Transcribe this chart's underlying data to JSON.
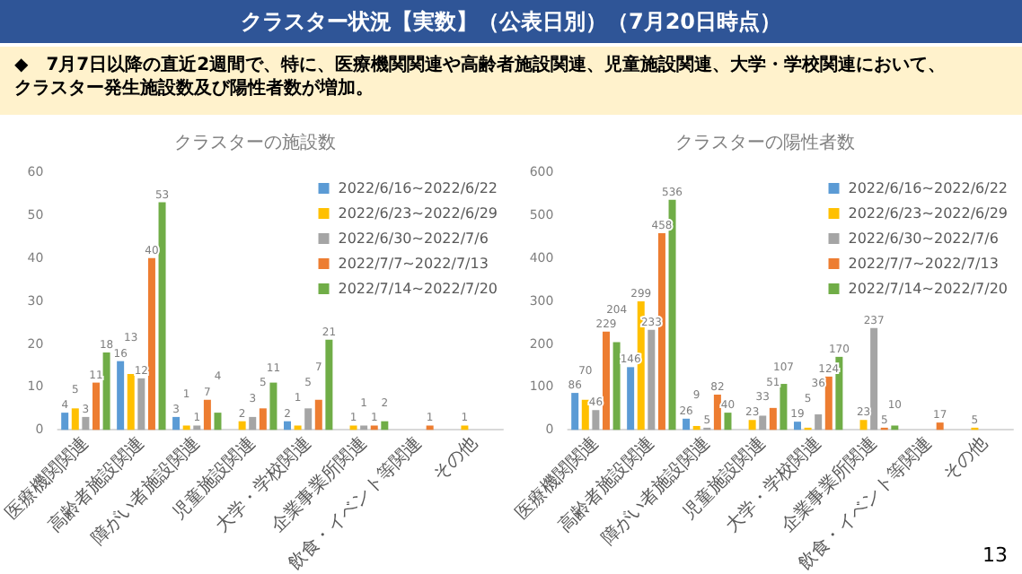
{
  "chart_data": [
    {
      "type": "bar",
      "title": "クラスターの施設数",
      "annotations": [
        "クラスター状況【実数】（公表日別）（7月20日時点）",
        "◆　7月7日以降の直近2週間で、特に、医療機関関連や高齢者施設関連、児童施設関連、大学・学校関連において、",
        "クラスター発生施設数及び陽性者数が増加。"
      ],
      "categories": [
        "医療機関関連",
        "高齢者施設関連",
        "障がい者施設関連",
        "児童施設関連",
        "大学・学校関連",
        "企業事業所関連",
        "飲食・イベント等関連",
        "その他"
      ],
      "series": [
        {
          "name": "2022/6/16~2022/6/22",
          "color": "#5b9bd5",
          "values": [
            4,
            16,
            3,
            null,
            2,
            null,
            null,
            null
          ]
        },
        {
          "name": "2022/6/23~2022/6/29",
          "color": "#ffc000",
          "values": [
            5,
            13,
            1,
            2,
            1,
            1,
            null,
            1
          ]
        },
        {
          "name": "2022/6/30~2022/7/6",
          "color": "#a5a5a5",
          "values": [
            3,
            12,
            1,
            3,
            5,
            1,
            null,
            null
          ]
        },
        {
          "name": "2022/7/7~2022/7/13",
          "color": "#ed7d31",
          "values": [
            11,
            40,
            7,
            5,
            7,
            1,
            1,
            null
          ]
        },
        {
          "name": "2022/7/14~2022/7/20",
          "color": "#70ad47",
          "values": [
            18,
            53,
            4,
            11,
            21,
            2,
            null,
            null
          ]
        }
      ],
      "ylim": [
        0,
        60
      ],
      "yticks": [
        0,
        10,
        20,
        30,
        40,
        50,
        60
      ],
      "grid": false,
      "legend": "top right",
      "data_labels": true
    },
    {
      "type": "bar",
      "title": "クラスターの陽性者数",
      "annotations": [
        "13"
      ],
      "categories": [
        "医療機関関連",
        "高齢者施設関連",
        "障がい者施設関連",
        "児童施設関連",
        "大学・学校関連",
        "企業事業所関連",
        "飲食・イベント等関連",
        "その他"
      ],
      "series": [
        {
          "name": "2022/6/16~2022/6/22",
          "color": "#5b9bd5",
          "values": [
            86,
            146,
            26,
            null,
            19,
            null,
            null,
            null
          ]
        },
        {
          "name": "2022/6/23~2022/6/29",
          "color": "#ffc000",
          "values": [
            70,
            299,
            9,
            23,
            5,
            23,
            null,
            5
          ]
        },
        {
          "name": "2022/6/30~2022/7/6",
          "color": "#a5a5a5",
          "values": [
            46,
            233,
            5,
            33,
            36,
            237,
            null,
            null
          ]
        },
        {
          "name": "2022/7/7~2022/7/13",
          "color": "#ed7d31",
          "values": [
            229,
            458,
            82,
            51,
            124,
            5,
            17,
            null
          ]
        },
        {
          "name": "2022/7/14~2022/7/20",
          "color": "#70ad47",
          "values": [
            204,
            536,
            40,
            107,
            170,
            10,
            null,
            null
          ]
        }
      ],
      "ylim": [
        0,
        600
      ],
      "yticks": [
        0,
        100,
        200,
        300,
        400,
        500,
        600
      ],
      "grid": false,
      "legend": "top right",
      "data_labels": true
    }
  ]
}
